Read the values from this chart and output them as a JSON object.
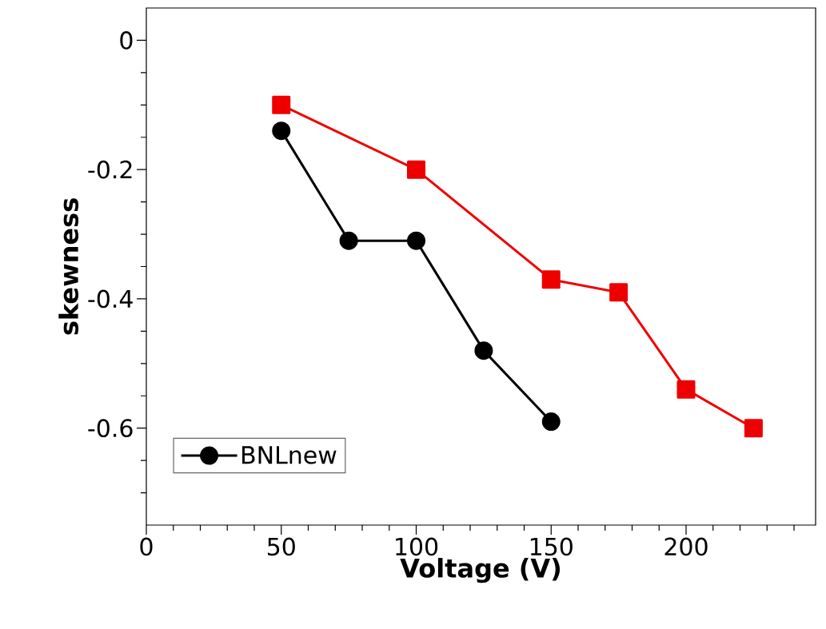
{
  "chart_data": {
    "type": "line",
    "xlabel": "Voltage (V)",
    "ylabel": "skewness",
    "series": [
      {
        "name": "BNLnew",
        "color": "#000000",
        "marker": "circle",
        "x": [
          50,
          75,
          100,
          125,
          150
        ],
        "values": [
          -0.14,
          -0.31,
          -0.31,
          -0.48,
          -0.59
        ]
      },
      {
        "color": "#ee0000",
        "marker": "square",
        "x": [
          50,
          100,
          150,
          175,
          200,
          225
        ],
        "values": [
          -0.1,
          -0.2,
          -0.37,
          -0.39,
          -0.54,
          -0.6
        ]
      }
    ],
    "xlim": [
      0,
      248
    ],
    "ylim": [
      -0.75,
      0.05
    ],
    "xticks": [
      0,
      {
        "value": 10,
        "label": null
      },
      {
        "value": 20,
        "label": null
      },
      {
        "value": 30,
        "label": null
      },
      {
        "value": 40,
        "label": null
      },
      50,
      {
        "value": 60,
        "label": null
      },
      {
        "value": 70,
        "label": null
      },
      {
        "value": 80,
        "label": null
      },
      {
        "value": 90,
        "label": null
      },
      100,
      {
        "value": 110,
        "label": null
      },
      {
        "value": 120,
        "label": null
      },
      {
        "value": 130,
        "label": null
      },
      {
        "value": 140,
        "label": null
      },
      150,
      {
        "value": 160,
        "label": null
      },
      {
        "value": 170,
        "label": null
      },
      {
        "value": 180,
        "label": null
      },
      {
        "value": 190,
        "label": null
      },
      200,
      {
        "value": 210,
        "label": null
      },
      {
        "value": 220,
        "label": null
      },
      {
        "value": 230,
        "label": null
      },
      {
        "value": 240,
        "label": null
      }
    ],
    "yticks": [
      0,
      {
        "value": -0.05,
        "label": null
      },
      {
        "value": -0.1,
        "label": null
      },
      {
        "value": -0.15,
        "label": null
      },
      -0.2,
      {
        "value": -0.25,
        "label": null
      },
      {
        "value": -0.3,
        "label": null
      },
      {
        "value": -0.35,
        "label": null
      },
      -0.4,
      {
        "value": -0.45,
        "label": null
      },
      {
        "value": -0.5,
        "label": null
      },
      {
        "value": -0.55,
        "label": null
      },
      -0.6,
      {
        "value": -0.65,
        "label": null
      },
      {
        "value": -0.7,
        "label": null
      }
    ],
    "legend": "bottom left",
    "grid": false,
    "line_style": "solid"
  }
}
